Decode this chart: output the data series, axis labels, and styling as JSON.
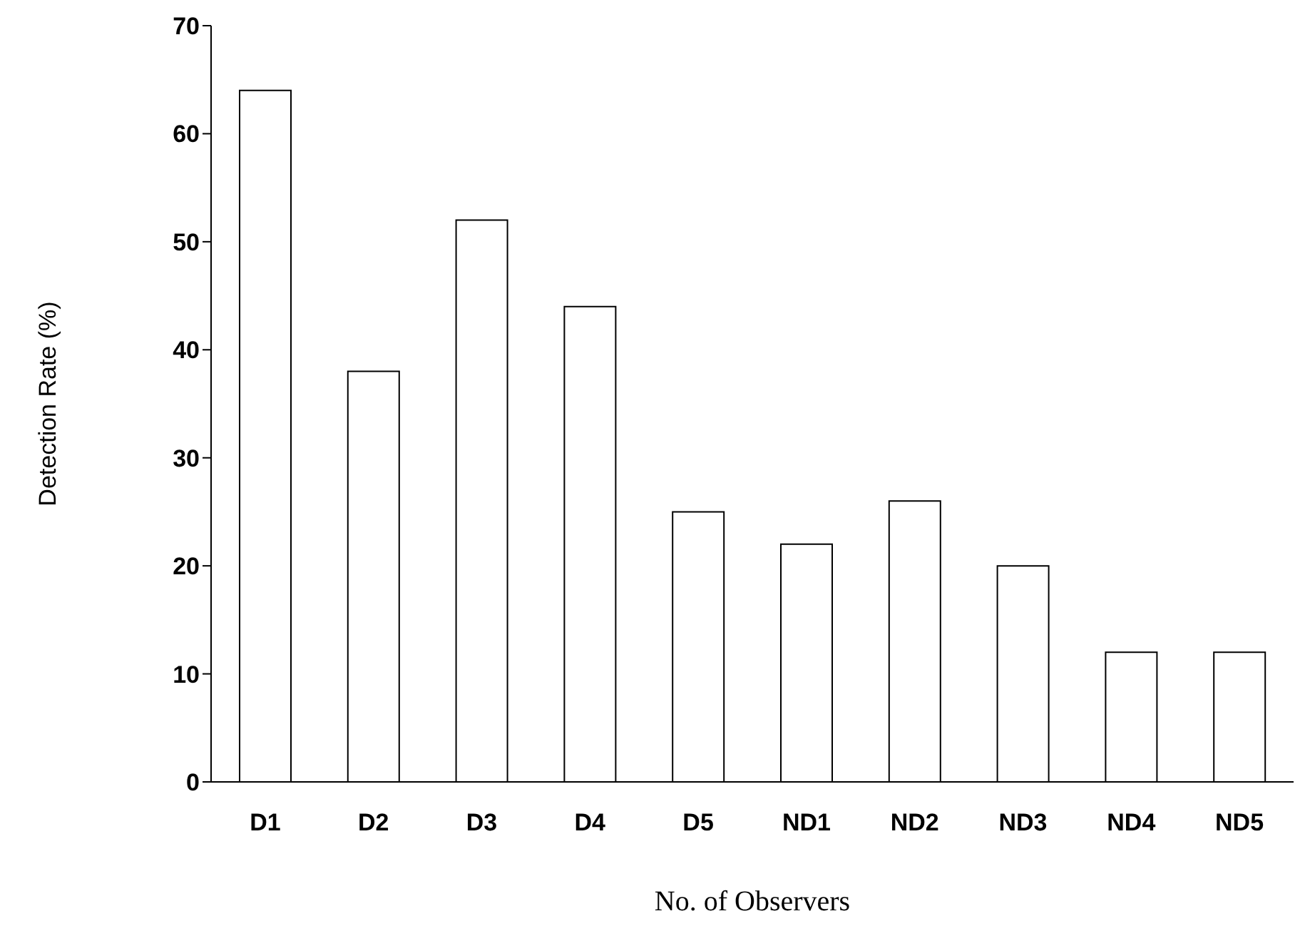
{
  "chart_data": {
    "type": "bar",
    "categories": [
      "D1",
      "D2",
      "D3",
      "D4",
      "D5",
      "ND1",
      "ND2",
      "ND3",
      "ND4",
      "ND5"
    ],
    "values": [
      64,
      38,
      52,
      44,
      25,
      22,
      26,
      20,
      12,
      12
    ],
    "color": "#ffffff",
    "xlabel": "No. of Observers",
    "ylabel": "Detection Rate (%)",
    "ylim": [
      0,
      70
    ],
    "yticks": [
      0,
      10,
      20,
      30,
      40,
      50,
      60,
      70
    ],
    "grid": false,
    "legend": false
  }
}
